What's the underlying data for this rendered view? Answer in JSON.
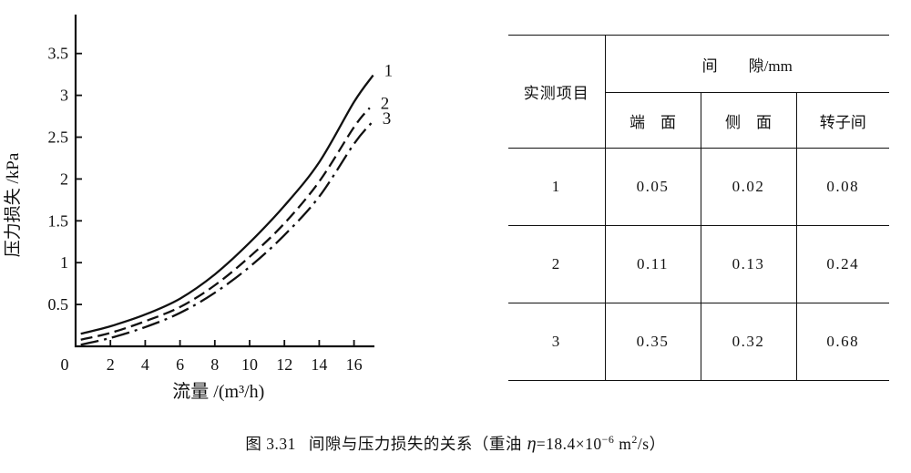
{
  "chart_data": {
    "type": "line",
    "title": "",
    "xlabel": "流量 /(m³/h)",
    "ylabel": "压力损失 /kPa",
    "xlim": [
      0,
      17.4
    ],
    "ylim": [
      0,
      3.9
    ],
    "x_ticks": [
      0,
      2,
      4,
      6,
      8,
      10,
      12,
      14,
      16
    ],
    "y_ticks": [
      0.5,
      1,
      1.5,
      2,
      2.5,
      3,
      3.5
    ],
    "grid": "off",
    "legend_position": "curve-end-labels",
    "series": [
      {
        "name": "1",
        "style": "solid",
        "points": [
          [
            0.3,
            0.15
          ],
          [
            2,
            0.24
          ],
          [
            4,
            0.38
          ],
          [
            6,
            0.57
          ],
          [
            8,
            0.86
          ],
          [
            10,
            1.24
          ],
          [
            12,
            1.68
          ],
          [
            14,
            2.2
          ],
          [
            16,
            2.92
          ],
          [
            17.1,
            3.24
          ]
        ]
      },
      {
        "name": "2",
        "style": "dashed",
        "points": [
          [
            0.3,
            0.08
          ],
          [
            2,
            0.16
          ],
          [
            4,
            0.3
          ],
          [
            6,
            0.47
          ],
          [
            8,
            0.73
          ],
          [
            10,
            1.07
          ],
          [
            12,
            1.47
          ],
          [
            14,
            1.97
          ],
          [
            16,
            2.62
          ],
          [
            16.9,
            2.85
          ]
        ]
      },
      {
        "name": "3",
        "style": "dash-dot",
        "points": [
          [
            0.3,
            0.02
          ],
          [
            2,
            0.1
          ],
          [
            4,
            0.23
          ],
          [
            6,
            0.4
          ],
          [
            8,
            0.64
          ],
          [
            10,
            0.95
          ],
          [
            12,
            1.33
          ],
          [
            14,
            1.79
          ],
          [
            16,
            2.42
          ],
          [
            17.0,
            2.67
          ]
        ]
      }
    ],
    "ink_color": "#111111",
    "background_color": "#ffffff"
  },
  "table": {
    "header": {
      "item_col": "实测项目",
      "group": "间　　隙/mm",
      "cols": [
        "端　面",
        "侧　面",
        "转子间"
      ]
    },
    "rows": [
      {
        "item": "1",
        "values": [
          "0.05",
          "0.02",
          "0.08"
        ]
      },
      {
        "item": "2",
        "values": [
          "0.11",
          "0.13",
          "0.24"
        ]
      },
      {
        "item": "3",
        "values": [
          "0.35",
          "0.32",
          "0.68"
        ]
      }
    ]
  },
  "caption": {
    "figure_no": "图 3.31",
    "title": "间隙与压力损失的关系",
    "paren": "（重油 ",
    "eta": "η",
    "value": "=18.4×10",
    "exp": "−6",
    "unit_base": " m",
    "unit_exp": "2",
    "unit_tail": "/s）"
  }
}
